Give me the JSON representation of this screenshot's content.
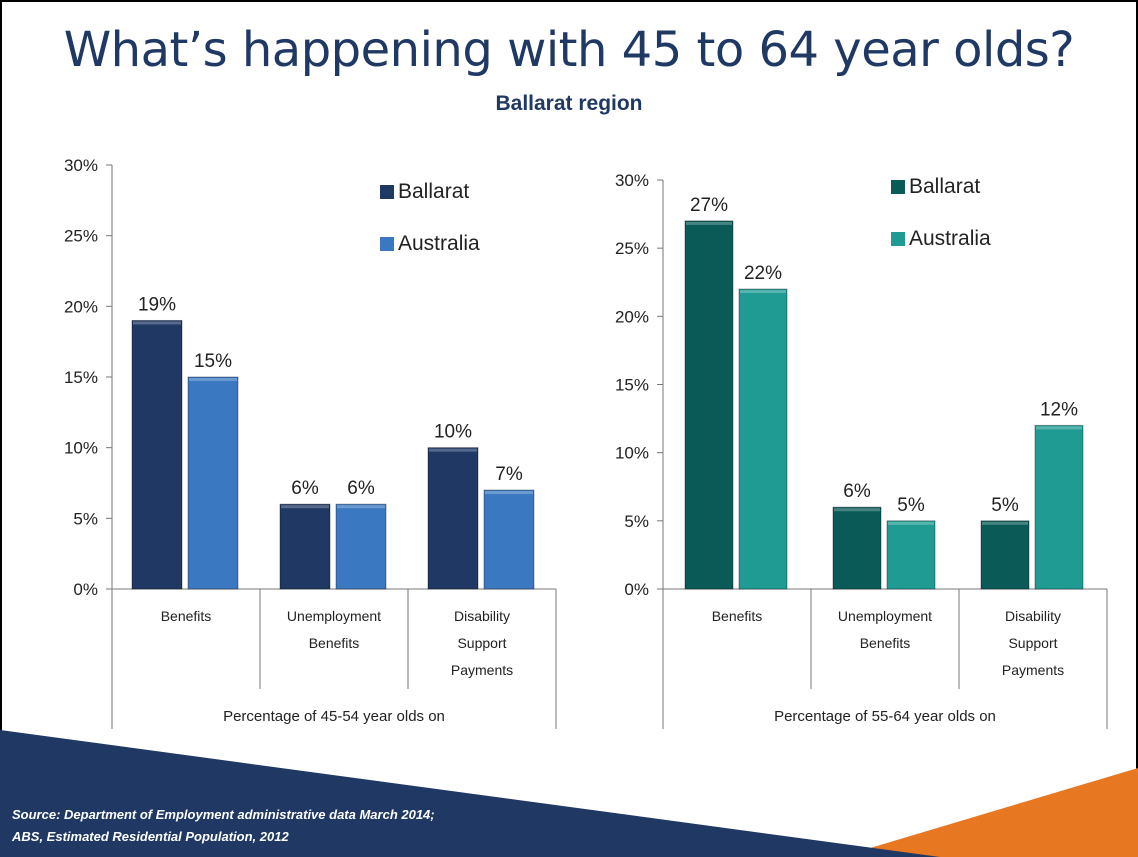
{
  "title": "What’s happening with 45 to 64 year olds?",
  "subtitle": "Ballarat region",
  "source": {
    "line1": "Source: Department of Employment administrative data March 2014;",
    "line2": "ABS, Estimated Residential Population, 2012"
  },
  "colors": {
    "title": "#1f3864",
    "left_ballarat": "#1f3864",
    "left_australia": "#3a78c2",
    "right_ballarat": "#0a5a57",
    "right_australia": "#1f9b94",
    "banner_navy": "#1f3864",
    "banner_orange": "#e87722"
  },
  "chart_data": [
    {
      "type": "bar",
      "categories": [
        [
          "Benefits"
        ],
        [
          "Unemployment",
          "Benefits"
        ],
        [
          "Disability",
          "Support",
          "Payments"
        ]
      ],
      "xlabel": "Percentage of 45-54 year olds on",
      "yticks": [
        "0%",
        "5%",
        "10%",
        "15%",
        "20%",
        "25%",
        "30%"
      ],
      "ylim": [
        0,
        30
      ],
      "legend_placement": "top-right",
      "series": [
        {
          "name": "Ballarat",
          "values": [
            19,
            6,
            10
          ],
          "labels": [
            "19%",
            "6%",
            "10%"
          ]
        },
        {
          "name": "Australia",
          "values": [
            15,
            6,
            7
          ],
          "labels": [
            "15%",
            "6%",
            "7%"
          ]
        }
      ]
    },
    {
      "type": "bar",
      "categories": [
        [
          "Benefits"
        ],
        [
          "Unemployment",
          "Benefits"
        ],
        [
          "Disability",
          "Support",
          "Payments"
        ]
      ],
      "xlabel": "Percentage of 55-64 year olds on",
      "yticks": [
        "0%",
        "5%",
        "10%",
        "15%",
        "20%",
        "25%",
        "30%"
      ],
      "ylim": [
        0,
        30
      ],
      "legend_placement": "top-right",
      "series": [
        {
          "name": "Ballarat",
          "values": [
            27,
            6,
            5
          ],
          "labels": [
            "27%",
            "6%",
            "5%"
          ]
        },
        {
          "name": "Australia",
          "values": [
            22,
            5,
            12
          ],
          "labels": [
            "22%",
            "5%",
            "12%"
          ]
        }
      ]
    }
  ]
}
